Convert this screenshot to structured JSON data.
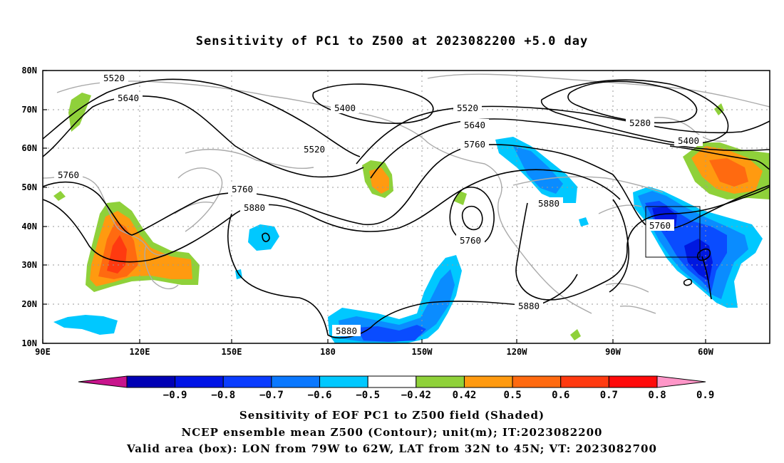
{
  "title": "Sensitivity of PC1 to Z500 at 2023082200 +5.0 day",
  "map": {
    "lat_labels": [
      "80N",
      "70N",
      "60N",
      "50N",
      "40N",
      "30N",
      "20N",
      "10N"
    ],
    "lon_labels": [
      "90E",
      "120E",
      "150E",
      "180",
      "150W",
      "120W",
      "90W",
      "60W"
    ],
    "contour_labels": [
      "5520",
      "5640",
      "5400",
      "5520",
      "5640",
      "5760",
      "5280",
      "5400",
      "5520",
      "5760",
      "5760",
      "5880",
      "5880",
      "5760",
      "5880",
      "5880"
    ],
    "shading_colors": {
      "pos_0_42": "#8fd13a",
      "pos_0_5": "#ff9a10",
      "pos_0_6": "#ff6a10",
      "pos_0_7": "#ff3a10",
      "neg_0_42": "#00c8ff",
      "neg_0_5": "#0a8cff",
      "neg_0_6": "#0a4cff",
      "neg_0_7": "#0018e0"
    },
    "valid_box": {
      "lon_from": "79W",
      "lon_to": "62W",
      "lat_from": "32N",
      "lat_to": "45N"
    }
  },
  "colorbar": {
    "colors": [
      "#c8148c",
      "#0000b4",
      "#0014e6",
      "#0a3cff",
      "#0a78ff",
      "#00c8ff",
      "#ffffff",
      "#8fd13a",
      "#ff9a10",
      "#ff6a10",
      "#ff3a10",
      "#ff0a0a",
      "#ff96c8"
    ],
    "ticks": [
      "-0.9",
      "-0.8",
      "-0.7",
      "-0.6",
      "-0.5",
      "-0.42",
      "0.42",
      "0.5",
      "0.6",
      "0.7",
      "0.8",
      "0.9"
    ]
  },
  "footer": {
    "line1": "Sensitivity of EOF PC1 to Z500 field (Shaded)",
    "line2": "NCEP ensemble mean Z500 (Contour); unit(m); IT:2023082200",
    "line3": "Valid area (box): LON from 79W to 62W, LAT from 32N to 45N; VT: 2023082700"
  }
}
